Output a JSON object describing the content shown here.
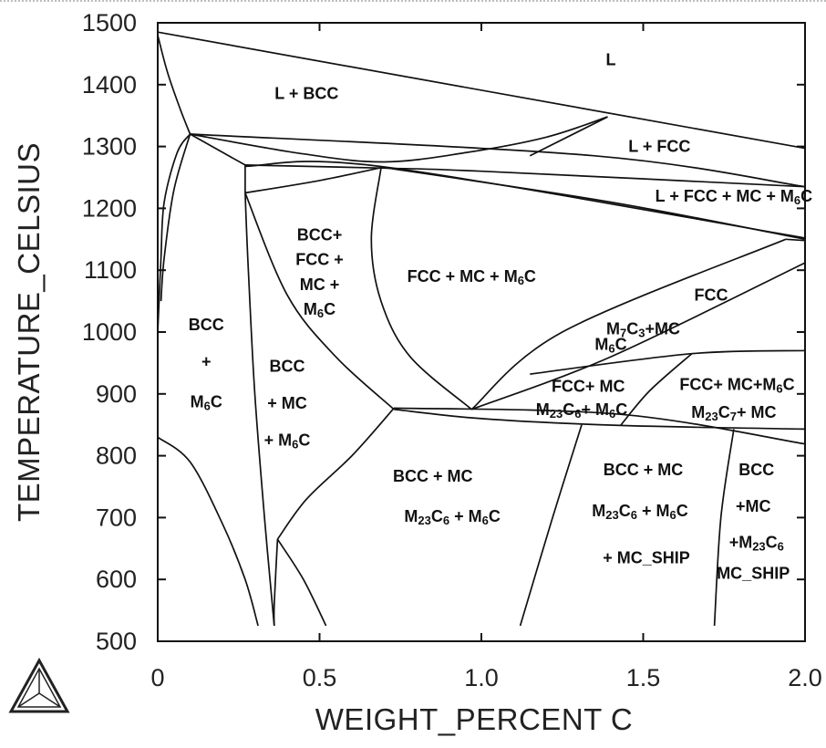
{
  "chart_data": {
    "type": "phase-diagram",
    "xlabel": "WEIGHT_PERCENT C",
    "ylabel": "TEMPERATURE_CELSIUS",
    "xlim": [
      0,
      2.0
    ],
    "ylim": [
      500,
      1500
    ],
    "x_ticks": [
      {
        "value": 0,
        "label": "0"
      },
      {
        "value": 0.5,
        "label": "0.5"
      },
      {
        "value": 1.0,
        "label": "1.0"
      },
      {
        "value": 1.5,
        "label": "1.5"
      },
      {
        "value": 2.0,
        "label": "2.0"
      }
    ],
    "y_ticks": [
      {
        "value": 500,
        "label": "500"
      },
      {
        "value": 600,
        "label": "600"
      },
      {
        "value": 700,
        "label": "700"
      },
      {
        "value": 800,
        "label": "800"
      },
      {
        "value": 900,
        "label": "900"
      },
      {
        "value": 1000,
        "label": "1000"
      },
      {
        "value": 1100,
        "label": "1100"
      },
      {
        "value": 1200,
        "label": "1200"
      },
      {
        "value": 1300,
        "label": "1300"
      },
      {
        "value": 1400,
        "label": "1400"
      },
      {
        "value": 1500,
        "label": "1500"
      }
    ],
    "boundaries": [
      {
        "points": [
          [
            0,
            1485
          ],
          [
            2.0,
            1297
          ]
        ]
      },
      {
        "points": [
          [
            0,
            1480
          ],
          [
            0.03,
            1420
          ],
          [
            0.07,
            1360
          ],
          [
            0.1,
            1320
          ]
        ]
      },
      {
        "points": [
          [
            0.1,
            1320
          ],
          [
            1.35,
            1285
          ],
          [
            2.0,
            1235
          ]
        ]
      },
      {
        "points": [
          [
            0.1,
            1320
          ],
          [
            0.45,
            1288
          ],
          [
            0.7,
            1275
          ],
          [
            0.95,
            1290
          ],
          [
            1.2,
            1315
          ],
          [
            1.39,
            1348
          ]
        ]
      },
      {
        "points": [
          [
            1.39,
            1348
          ],
          [
            1.15,
            1285
          ]
        ]
      },
      {
        "points": [
          [
            0.27,
            1270
          ],
          [
            0.7,
            1265
          ],
          [
            1.0,
            1260
          ],
          [
            2.0,
            1235
          ]
        ]
      },
      {
        "points": [
          [
            0.27,
            1268
          ],
          [
            0.7,
            1267
          ],
          [
            2.0,
            1152
          ]
        ]
      },
      {
        "points": [
          [
            0.27,
            1225
          ],
          [
            0.5,
            1245
          ],
          [
            0.7,
            1267
          ]
        ]
      },
      {
        "points": [
          [
            0.7,
            1266
          ],
          [
            1.4,
            1210
          ],
          [
            2.0,
            1150
          ]
        ]
      },
      {
        "points": [
          [
            1.94,
            1150
          ],
          [
            2.0,
            1148
          ]
        ]
      },
      {
        "points": [
          [
            0.1,
            1320
          ],
          [
            0.06,
            1290
          ],
          [
            0.02,
            1210
          ],
          [
            0.01,
            1120
          ],
          [
            0,
            1000
          ]
        ]
      },
      {
        "points": [
          [
            0.1,
            1320
          ],
          [
            0.27,
            1270
          ]
        ]
      },
      {
        "points": [
          [
            0.1,
            1320
          ],
          [
            0.05,
            1230
          ],
          [
            0.02,
            1120
          ],
          [
            0.01,
            1050
          ]
        ]
      },
      {
        "points": [
          [
            0.27,
            1270
          ],
          [
            0.27,
            1225
          ]
        ]
      },
      {
        "points": [
          [
            0.27,
            1225
          ],
          [
            0.28,
            1100
          ],
          [
            0.3,
            900
          ],
          [
            0.33,
            700
          ],
          [
            0.36,
            525
          ]
        ]
      },
      {
        "points": [
          [
            0.27,
            1225
          ],
          [
            0.4,
            1060
          ],
          [
            0.55,
            960
          ],
          [
            0.73,
            875
          ]
        ]
      },
      {
        "points": [
          [
            0.69,
            1265
          ],
          [
            0.66,
            1150
          ],
          [
            0.69,
            1050
          ],
          [
            0.78,
            960
          ],
          [
            0.97,
            875
          ]
        ]
      },
      {
        "points": [
          [
            0.73,
            875
          ],
          [
            1.0,
            860
          ],
          [
            1.43,
            849
          ],
          [
            2.0,
            843
          ]
        ]
      },
      {
        "points": [
          [
            0.73,
            877
          ],
          [
            1.43,
            867
          ],
          [
            2.0,
            819
          ]
        ]
      },
      {
        "points": [
          [
            0.73,
            877
          ],
          [
            0.6,
            800
          ],
          [
            0.46,
            730
          ],
          [
            0.37,
            665
          ]
        ]
      },
      {
        "points": [
          [
            0.37,
            665
          ],
          [
            0.45,
            600
          ],
          [
            0.52,
            525
          ]
        ]
      },
      {
        "points": [
          [
            0.37,
            665
          ],
          [
            0.36,
            560
          ],
          [
            0.36,
            525
          ]
        ]
      },
      {
        "points": [
          [
            0,
            830
          ],
          [
            0.1,
            790
          ],
          [
            0.2,
            690
          ],
          [
            0.27,
            600
          ],
          [
            0.31,
            525
          ]
        ]
      },
      {
        "points": [
          [
            0.97,
            875
          ],
          [
            1.25,
            1000
          ],
          [
            1.94,
            1150
          ]
        ]
      },
      {
        "points": [
          [
            0.97,
            875
          ],
          [
            1.4,
            960
          ],
          [
            2.0,
            1112
          ]
        ]
      },
      {
        "points": [
          [
            1.15,
            932
          ],
          [
            1.65,
            965
          ],
          [
            2.0,
            970
          ]
        ]
      },
      {
        "points": [
          [
            1.43,
            849
          ],
          [
            1.52,
            905
          ],
          [
            1.65,
            965
          ]
        ]
      },
      {
        "points": [
          [
            1.31,
            850
          ],
          [
            1.22,
            700
          ],
          [
            1.12,
            525
          ]
        ]
      },
      {
        "points": [
          [
            1.78,
            843
          ],
          [
            1.74,
            700
          ],
          [
            1.72,
            525
          ]
        ]
      }
    ],
    "region_labels": [
      {
        "text": "L",
        "x": 1.4,
        "y": 1440
      },
      {
        "text": "L + BCC",
        "x": 0.46,
        "y": 1386
      },
      {
        "text": "L + FCC",
        "x": 1.55,
        "y": 1300
      },
      {
        "text": "L + FCC + MC + M6C",
        "x": 1.78,
        "y": 1220
      },
      {
        "text": "BCC+",
        "x": 0.5,
        "y": 1157
      },
      {
        "text": "FCC +",
        "x": 0.5,
        "y": 1117
      },
      {
        "text": "MC +",
        "x": 0.5,
        "y": 1077
      },
      {
        "text": "M6C",
        "x": 0.5,
        "y": 1037
      },
      {
        "text": "FCC + MC + M6C",
        "x": 0.97,
        "y": 1090
      },
      {
        "text": "FCC",
        "x": 1.71,
        "y": 1060
      },
      {
        "text": "M7C3+MC",
        "x": 1.5,
        "y": 1005
      },
      {
        "text": "M6C",
        "x": 1.4,
        "y": 980
      },
      {
        "text": "FCC+ MC",
        "x": 1.33,
        "y": 912
      },
      {
        "text": "M23C6+ M6C",
        "x": 1.31,
        "y": 875
      },
      {
        "text": "FCC+ MC+M6C",
        "x": 1.79,
        "y": 915
      },
      {
        "text": "M23C7+ MC",
        "x": 1.78,
        "y": 870
      },
      {
        "text": "BCC",
        "x": 0.15,
        "y": 1012
      },
      {
        "text": "+",
        "x": 0.15,
        "y": 952
      },
      {
        "text": "M6C",
        "x": 0.15,
        "y": 887
      },
      {
        "text": "BCC",
        "x": 0.4,
        "y": 945
      },
      {
        "text": "+ MC",
        "x": 0.4,
        "y": 885
      },
      {
        "text": "+ M6C",
        "x": 0.4,
        "y": 825
      },
      {
        "text": "BCC  +  MC",
        "x": 0.85,
        "y": 767
      },
      {
        "text": "M23C6 + M6C",
        "x": 0.91,
        "y": 702
      },
      {
        "text": "BCC  +  MC",
        "x": 1.5,
        "y": 777
      },
      {
        "text": "M23C6 + M6C",
        "x": 1.49,
        "y": 711
      },
      {
        "text": "+ MC_SHIP",
        "x": 1.51,
        "y": 635
      },
      {
        "text": "BCC",
        "x": 1.85,
        "y": 777
      },
      {
        "text": "+MC",
        "x": 1.84,
        "y": 718
      },
      {
        "text": "+M23C6",
        "x": 1.85,
        "y": 660
      },
      {
        "text": "MC_SHIP",
        "x": 1.84,
        "y": 610
      }
    ],
    "grid": false,
    "logo": "thermo-calc-triangle-logo"
  }
}
